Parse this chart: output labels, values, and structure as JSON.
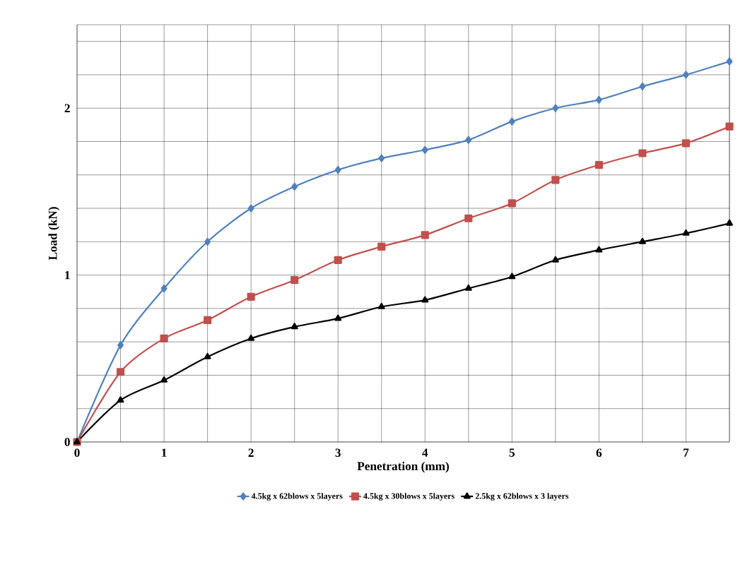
{
  "chart_data": {
    "type": "line",
    "xlabel": "Penetration (mm)",
    "ylabel": "Load (kN)",
    "x": [
      0,
      0.5,
      1,
      1.5,
      2,
      2.5,
      3,
      3.5,
      4,
      4.5,
      5,
      5.5,
      6,
      6.5,
      7,
      7.5
    ],
    "series": [
      {
        "name": "4.5kg x 62blows x 5layers",
        "color": "#4f81bd",
        "marker": "diamond",
        "values": [
          0,
          0.58,
          0.92,
          1.2,
          1.4,
          1.53,
          1.63,
          1.7,
          1.75,
          1.81,
          1.92,
          2.0,
          2.05,
          2.13,
          2.2,
          2.28
        ]
      },
      {
        "name": "4.5kg x 30blows x 5layers",
        "color": "#c0504d",
        "marker": "square",
        "values": [
          0,
          0.42,
          0.62,
          0.73,
          0.87,
          0.97,
          1.09,
          1.17,
          1.24,
          1.34,
          1.43,
          1.57,
          1.66,
          1.73,
          1.79,
          1.89
        ]
      },
      {
        "name": "2.5kg x 62blows x 3 layers",
        "color": "#000000",
        "marker": "triangle",
        "values": [
          0,
          0.25,
          0.37,
          0.51,
          0.62,
          0.69,
          0.74,
          0.81,
          0.85,
          0.92,
          0.99,
          1.09,
          1.15,
          1.2,
          1.25,
          1.31
        ]
      }
    ],
    "xlim": [
      0,
      7.5
    ],
    "ylim": [
      0,
      2.5
    ],
    "xticks": [
      0,
      {
        "value": 0.5,
        "label": null
      },
      1,
      {
        "value": 1.5,
        "label": null
      },
      2,
      {
        "value": 2.5,
        "label": null
      },
      3,
      {
        "value": 3.5,
        "label": null
      },
      4,
      {
        "value": 4.5,
        "label": null
      },
      5,
      {
        "value": 5.5,
        "label": null
      },
      6,
      {
        "value": 6.5,
        "label": null
      },
      7,
      {
        "value": 7.5,
        "label": null
      }
    ],
    "yticks": [
      0,
      {
        "value": 0.2,
        "label": null
      },
      {
        "value": 0.4,
        "label": null
      },
      {
        "value": 0.6,
        "label": null
      },
      {
        "value": 0.8,
        "label": null
      },
      1,
      {
        "value": 1.2,
        "label": null
      },
      {
        "value": 1.4,
        "label": null
      },
      {
        "value": 1.6,
        "label": null
      },
      {
        "value": 1.8,
        "label": null
      },
      2,
      {
        "value": 2.2,
        "label": null
      },
      {
        "value": 2.4,
        "label": null
      }
    ],
    "grid": true,
    "legend": "bottom",
    "line_style": "solid"
  }
}
